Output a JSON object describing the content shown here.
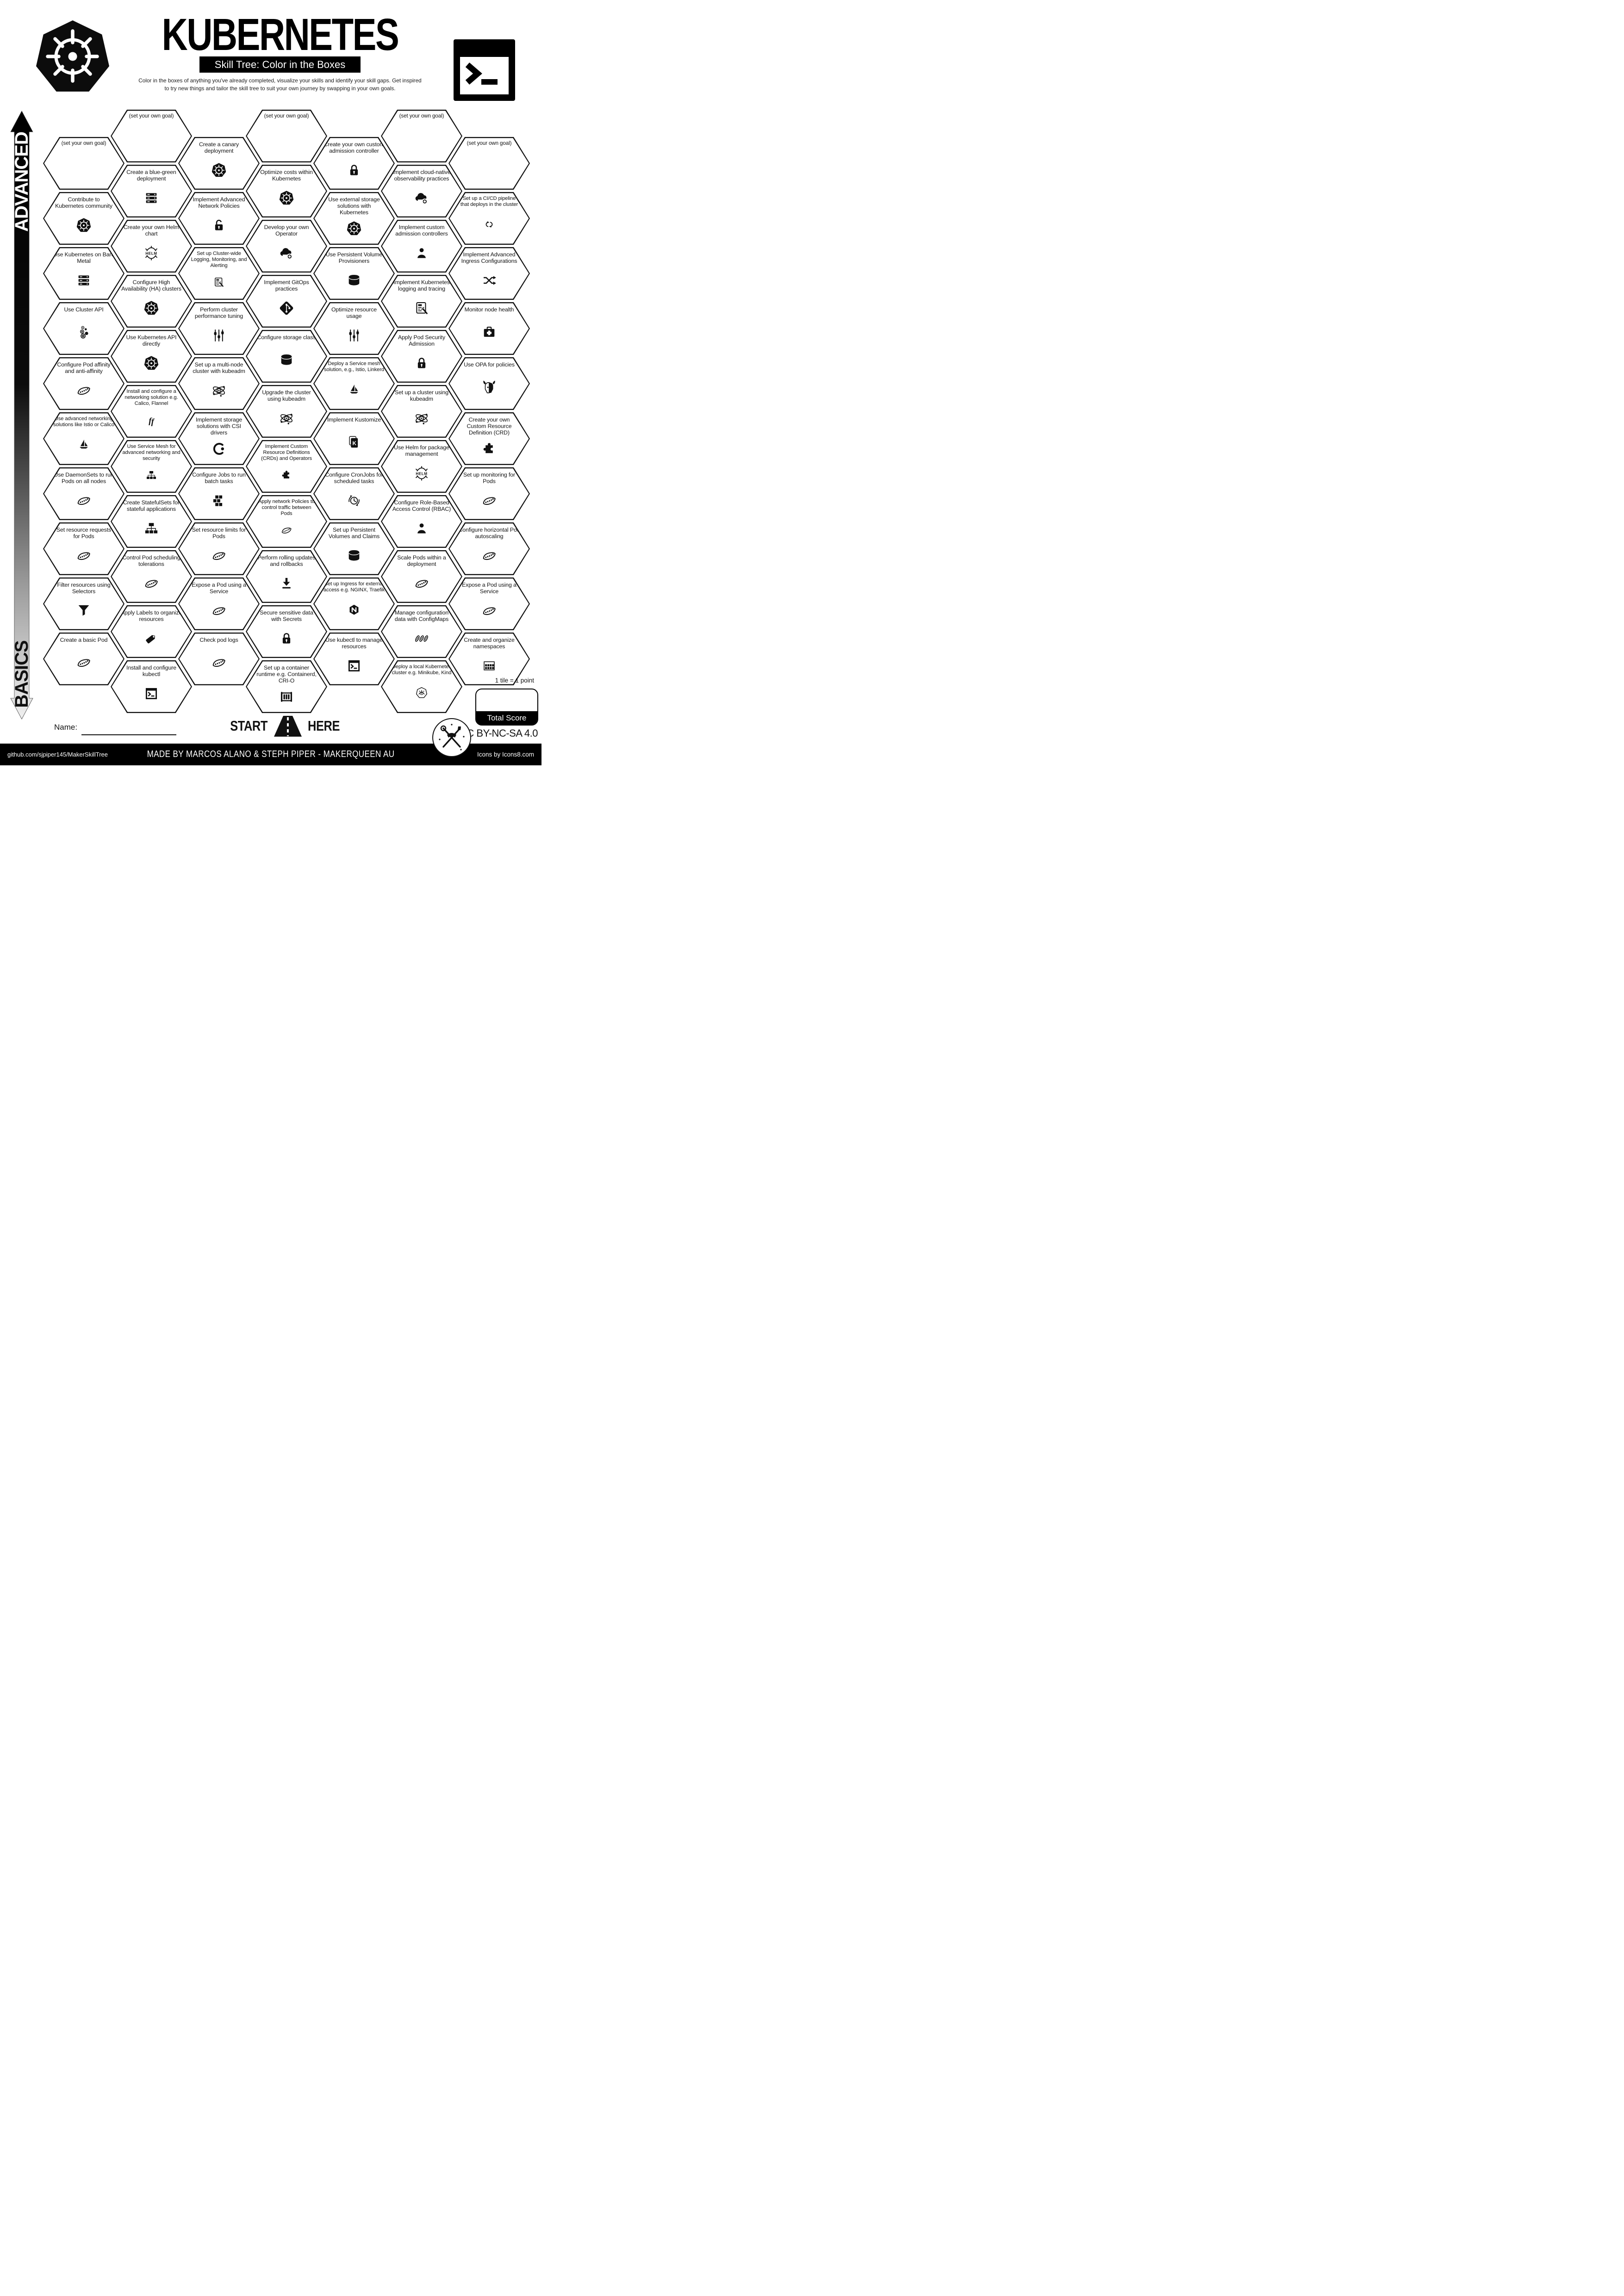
{
  "header": {
    "title": "KUBERNETES",
    "subtitle": "Skill Tree: Color in the Boxes",
    "description_line1": "Color in the boxes of anything you've already completed, visualize your skills and identify your skill gaps.  Get inspired",
    "description_line2": "to try new things and tailor the skill tree to suit your own journey by swapping in your own goals.",
    "logos": {
      "left": "kubernetes-logo-icon",
      "right": "terminal-logo-icon"
    }
  },
  "axis": {
    "advanced": "ADVANCED",
    "basics": "BASICS"
  },
  "grid": {
    "columns": [
      {
        "tiles": [
          {
            "label": "(set your own goal)",
            "goal": true,
            "icon": null
          },
          {
            "label": "Contribute to Kubernetes community",
            "icon": "kubernetes-icon"
          },
          {
            "label": "Use Kubernetes on Bare Metal",
            "icon": "server-rack-icon"
          },
          {
            "label": "Use Cluster API",
            "icon": "cluster-api-icon"
          },
          {
            "label": "Configure Pod affinity and anti-affinity",
            "icon": "pod-icon"
          },
          {
            "label": "Use advanced networking solutions like Istio or Calico",
            "icon": "sailboat-icon"
          },
          {
            "label": "Use DaemonSets to run Pods on all nodes",
            "icon": "pod-icon"
          },
          {
            "label": "Set resource requests for Pods",
            "icon": "pod-icon"
          },
          {
            "label": "Filter resources using Selectors",
            "icon": "funnel-icon"
          },
          {
            "label": "Create a basic Pod",
            "icon": "pod-icon"
          }
        ]
      },
      {
        "tiles": [
          {
            "label": "(set your own goal)",
            "goal": true,
            "icon": null
          },
          {
            "label": "Create a blue-green deployment",
            "icon": "server-rack-icon"
          },
          {
            "label": "Create your own Helm chart",
            "icon": "helm-icon"
          },
          {
            "label": "Configure High Availability (HA) clusters",
            "icon": "kubernetes-icon"
          },
          {
            "label": "Use Kubernetes API directly",
            "icon": "kubernetes-icon"
          },
          {
            "label": "Install and configure a networking solution e.g. Calico, Flannel",
            "icon": "flannel-icon"
          },
          {
            "label": "Use Service Mesh for advanced networking and security",
            "icon": "tree-icon"
          },
          {
            "label": "Create StatefulSets for stateful applications",
            "icon": "tree-icon"
          },
          {
            "label": "Control Pod scheduling tolerations",
            "icon": "pod-icon"
          },
          {
            "label": "Apply Labels to organize resources",
            "icon": "tag-icon"
          },
          {
            "label": "Install and configure kubectl",
            "icon": "terminal-window-icon"
          }
        ]
      },
      {
        "tiles": [
          {
            "label": "Create a canary deployment",
            "icon": "kubernetes-icon"
          },
          {
            "label": "Implement Advanced Network Policies",
            "icon": "lock-open-icon"
          },
          {
            "label": "Set up Cluster-wide Logging, Monitoring, and Alerting",
            "icon": "log-report-icon"
          },
          {
            "label": "Perform cluster performance tuning",
            "icon": "sliders-icon"
          },
          {
            "label": "Set up a multi-node cluster with kubeadm",
            "icon": "kubeadm-icon"
          },
          {
            "label": "Implement storage solutions with CSI drivers",
            "icon": "csi-icon"
          },
          {
            "label": "Configure Jobs to run batch tasks",
            "icon": "blocks-icon"
          },
          {
            "label": "Set resource limits for Pods",
            "icon": "pod-icon"
          },
          {
            "label": "Expose a Pod using a Service",
            "icon": "pod-icon"
          },
          {
            "label": "Check pod logs",
            "icon": "pod-icon"
          }
        ]
      },
      {
        "tiles": [
          {
            "label": "(set your own goal)",
            "goal": true,
            "icon": null
          },
          {
            "label": "Optimize costs within Kubernetes",
            "icon": "kubernetes-icon"
          },
          {
            "label": "Develop your own Operator",
            "icon": "cloud-sync-icon"
          },
          {
            "label": "Implement GitOps practices",
            "icon": "git-icon"
          },
          {
            "label": "Configure storage class",
            "icon": "cylinder-icon"
          },
          {
            "label": "Upgrade the cluster using kubeadm",
            "icon": "kubeadm-icon"
          },
          {
            "label": "Implement Custom Resource Definitions (CRDs) and Operators",
            "icon": "puzzle-icon"
          },
          {
            "label": "Apply network Policies to control traffic between Pods",
            "icon": "pod-icon"
          },
          {
            "label": "Perform rolling updates and rollbacks",
            "icon": "download-icon"
          },
          {
            "label": "Secure sensitive data with Secrets",
            "icon": "lock-icon"
          },
          {
            "label": "Set up a container runtime e.g. Containerd, CRI-O",
            "icon": "container-icon"
          }
        ]
      },
      {
        "tiles": [
          {
            "label": "Create your own custom admission controller",
            "icon": "lock-icon"
          },
          {
            "label": "Use external storage solutions with Kubernetes",
            "icon": "kubernetes-icon"
          },
          {
            "label": "Use Persistent Volume Provisioners",
            "icon": "cylinder-icon"
          },
          {
            "label": "Optimize resource usage",
            "icon": "sliders-icon"
          },
          {
            "label": "Deploy a Service mesh solution, e.g., Istio, Linkerd",
            "icon": "sailboat-icon"
          },
          {
            "label": "Implement Kustomize",
            "icon": "kustomize-icon"
          },
          {
            "label": "Configure CronJobs for scheduled tasks",
            "icon": "cron-icon"
          },
          {
            "label": "Set up Persistent Volumes and Claims",
            "icon": "cylinder-icon"
          },
          {
            "label": "Set up Ingress for external access e.g. NGINX, Traefik",
            "icon": "nginx-icon"
          },
          {
            "label": "Use kubectl to manage resources",
            "icon": "terminal-window-icon"
          }
        ]
      },
      {
        "tiles": [
          {
            "label": "(set your own goal)",
            "goal": true,
            "icon": null
          },
          {
            "label": "Implement cloud-native observability practices",
            "icon": "cloud-sync-icon"
          },
          {
            "label": "Implement custom admission controllers",
            "icon": "person-icon"
          },
          {
            "label": "Implement Kubernetes logging and tracing",
            "icon": "log-report-icon"
          },
          {
            "label": "Apply Pod Security Admission",
            "icon": "lock-icon"
          },
          {
            "label": "Set up a cluster using kubeadm",
            "icon": "kubeadm-icon"
          },
          {
            "label": "Use Helm for package management",
            "icon": "helm-icon"
          },
          {
            "label": "Configure Role-Based Access Control (RBAC)",
            "icon": "person-icon"
          },
          {
            "label": "Scale Pods within a deployment",
            "icon": "pod-icon"
          },
          {
            "label": "Manage configuration data with ConfigMaps",
            "icon": "peas-icon"
          },
          {
            "label": "Deploy a local Kubernetes cluster e.g. Minikube, Kind",
            "icon": "minikube-icon"
          }
        ]
      },
      {
        "tiles": [
          {
            "label": "(set your own goal)",
            "goal": true,
            "icon": null
          },
          {
            "label": "Set up a CI/CD pipeline that deploys in the cluster",
            "icon": "cicd-icon"
          },
          {
            "label": "Implement Advanced Ingress Configurations",
            "icon": "shuffle-icon"
          },
          {
            "label": "Monitor node health",
            "icon": "medkit-icon"
          },
          {
            "label": "Use OPA for policies",
            "icon": "opa-icon"
          },
          {
            "label": "Create your own Custom Resource Definition (CRD)",
            "icon": "puzzle-icon"
          },
          {
            "label": "Set up monitoring for Pods",
            "icon": "pod-icon"
          },
          {
            "label": "Configure horizontal Pod autoscaling",
            "icon": "pod-icon"
          },
          {
            "label": "Expose a Pod using a Service",
            "icon": "pod-icon"
          },
          {
            "label": "Create and organize namespaces",
            "icon": "namespaces-icon"
          }
        ]
      }
    ]
  },
  "start_here": {
    "start": "START",
    "here": "HERE",
    "icon": "road-icon"
  },
  "name_field": {
    "label": "Name:"
  },
  "score": {
    "tile_note": "1 tile = 1 point",
    "total_label": "Total Score"
  },
  "license": {
    "text": "CC BY-NC-SA 4.0",
    "logo": "makerqueen-logo"
  },
  "footer": {
    "left": "github.com/sjpiper145/MakerSkillTree",
    "center": "MADE BY MARCOS ALANO & STEPH PIPER  -  MAKERQUEEN AU",
    "right": "Icons by Icons8.com"
  },
  "colors": {
    "ink": "#111111",
    "paper": "#ffffff"
  }
}
